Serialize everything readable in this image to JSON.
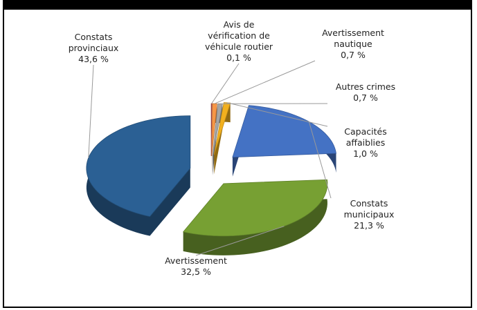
{
  "chart_data": {
    "type": "pie",
    "categories": [
      "Avis de vérification de véhicule routier",
      "Avertissement nautique",
      "Autres crimes",
      "Capacités affaiblies",
      "Constats municipaux",
      "Avertissement",
      "Constats provinciaux"
    ],
    "values": [
      0.1,
      0.7,
      0.7,
      1.0,
      21.3,
      32.5,
      43.6
    ],
    "value_labels": [
      "0,1 %",
      "0,7 %",
      "0,7 %",
      "1,0 %",
      "21,3 %",
      "32,5 %",
      "43,6 %"
    ],
    "colors": [
      "#c0504d",
      "#f79646",
      "#a5a5a5",
      "#f2b01e",
      "#4472c4",
      "#77a033",
      "#2b6094"
    ]
  }
}
